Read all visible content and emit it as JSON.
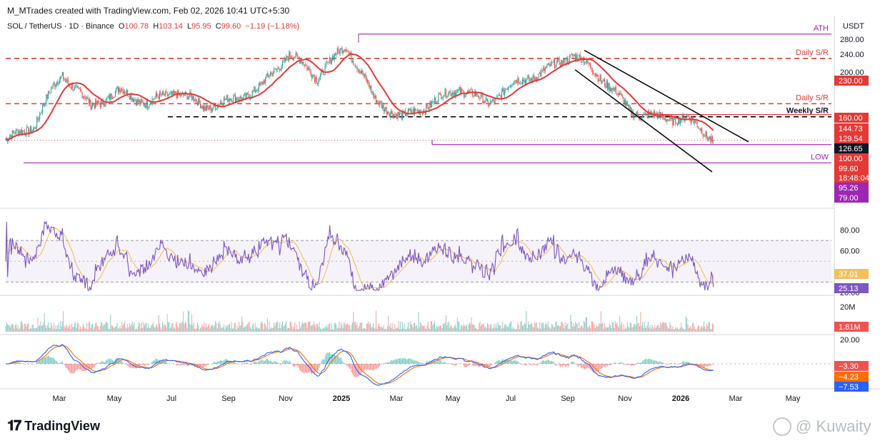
{
  "header": {
    "created_by": "M_MTrades created with TradingView.com, Feb 02, 2026 10:41 UTC+5:30",
    "symbol": "SOL / TetherUS · 1D · Binance",
    "o_key": "O",
    "o_val": "100.78",
    "h_key": "H",
    "h_val": "103.14",
    "l_key": "L",
    "l_val": "95.95",
    "c_key": "C",
    "c_val": "99.60",
    "change": "−1.19 (−1.18%)",
    "currency": "USDT"
  },
  "brand": {
    "name": "TradingView",
    "logo": "tradingview-logo-icon"
  },
  "watermark": {
    "text": "@ Kuwaity",
    "icon": "crown-logo-icon"
  },
  "colors": {
    "up": "#26a69a",
    "down": "#ef5350",
    "ma": "#e53935",
    "rsi": "#7e57c2",
    "rsi_ma": "#f4c05a",
    "macd": "#2962ff",
    "signal": "#ff6d00",
    "level_purple": "#9c27b0",
    "resistance": "#e53935",
    "support": "#000000"
  },
  "chart_data": [
    {
      "type": "candlestick",
      "panel": "price",
      "title": "SOL / TetherUS · 1D · Binance",
      "x_ticks": [
        "Mar",
        "May",
        "Jul",
        "Sep",
        "Nov",
        "2025",
        "Mar",
        "May",
        "Jul",
        "Sep",
        "Nov",
        "2026",
        "Mar",
        "May"
      ],
      "y_ticks": [
        200,
        240,
        280
      ],
      "ylim": [
        60,
        300
      ],
      "close_path_monthly": [
        {
          "t": "2024-01",
          "v": 100
        },
        {
          "t": "2024-02",
          "v": 115
        },
        {
          "t": "2024-03",
          "v": 195
        },
        {
          "t": "2024-04",
          "v": 140
        },
        {
          "t": "2024-05",
          "v": 165
        },
        {
          "t": "2024-06",
          "v": 145
        },
        {
          "t": "2024-07",
          "v": 165
        },
        {
          "t": "2024-08",
          "v": 140
        },
        {
          "t": "2024-09",
          "v": 150
        },
        {
          "t": "2024-10",
          "v": 170
        },
        {
          "t": "2024-11",
          "v": 240
        },
        {
          "t": "2024-12",
          "v": 190
        },
        {
          "t": "2025-01",
          "v": 260
        },
        {
          "t": "2025-02",
          "v": 150
        },
        {
          "t": "2025-03",
          "v": 125
        },
        {
          "t": "2025-04",
          "v": 145
        },
        {
          "t": "2025-05",
          "v": 170
        },
        {
          "t": "2025-06",
          "v": 145
        },
        {
          "t": "2025-07",
          "v": 180
        },
        {
          "t": "2025-08",
          "v": 200
        },
        {
          "t": "2025-09",
          "v": 240
        },
        {
          "t": "2025-10",
          "v": 190
        },
        {
          "t": "2025-11",
          "v": 135
        },
        {
          "t": "2025-12",
          "v": 125
        },
        {
          "t": "2026-01",
          "v": 125
        },
        {
          "t": "2026-02",
          "v": 99.6
        }
      ],
      "levels": [
        {
          "name": "ATH",
          "value": 295,
          "label": "ATH",
          "color": "#9c27b0",
          "style": "solid"
        },
        {
          "name": "Daily S/R",
          "value": 230.0,
          "label": "Daily S/R",
          "color": "#e53935",
          "style": "dashed"
        },
        {
          "name": "Daily S/R",
          "value": 144.73,
          "label": "Daily S/R",
          "color": "#e53935",
          "style": "dashed"
        },
        {
          "name": "Weekly S/R",
          "value": 126.65,
          "label": "Weekly S/R",
          "color": "#000000",
          "style": "dashed"
        },
        {
          "name": "LOW",
          "value": 79.0,
          "label": "LOW",
          "color": "#9c27b0",
          "style": "solid"
        }
      ],
      "price_tags": [
        {
          "text": "230.00",
          "bg": "#e53935"
        },
        {
          "text": "160.00",
          "bg": "#e53935"
        },
        {
          "text": "144.73",
          "bg": "#e53935"
        },
        {
          "text": "129.54",
          "bg": "#e53935"
        },
        {
          "text": "126.65",
          "bg": "#131722"
        },
        {
          "text": "100.00",
          "bg": "#e53935"
        },
        {
          "text": "99.60",
          "bg": "#e53935"
        },
        {
          "text": "18:48:04",
          "bg": "#e53935"
        },
        {
          "text": "95.26",
          "bg": "#9c27b0"
        },
        {
          "text": "79.00",
          "bg": "#9c27b0"
        }
      ]
    },
    {
      "type": "line",
      "panel": "rsi",
      "y_ticks": [
        80.0,
        60.0,
        40.0,
        20.0
      ],
      "ylim": [
        20,
        90
      ],
      "band": [
        30,
        70
      ],
      "series": [
        {
          "name": "RSI",
          "last": 25.13
        },
        {
          "name": "RSI MA",
          "last": 37.01
        }
      ]
    },
    {
      "type": "bar",
      "panel": "volume",
      "y_ticks": [
        "20M"
      ],
      "last": "1.81M"
    },
    {
      "type": "line",
      "panel": "macd",
      "y_ticks": [
        20.0,
        0.0
      ],
      "series": [
        {
          "name": "MACD",
          "last": -7.53
        },
        {
          "name": "Signal",
          "last": -4.23
        },
        {
          "name": "Histogram",
          "last": -3.3
        }
      ],
      "tags": [
        "−3.30",
        "−4.23",
        "−7.53"
      ]
    }
  ]
}
